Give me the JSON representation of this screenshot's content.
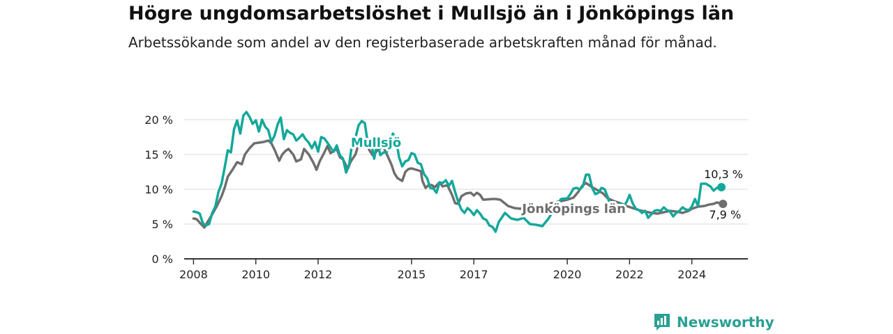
{
  "title": "Högre ungdomsarbetslöshet i Mullsjö än i Jönköpings län",
  "subtitle": "Arbetssökande som andel av den registerbaserade arbetskraften månad för månad.",
  "brand": "Newsworthy",
  "colors": {
    "mullsjo": "#13a89a",
    "lan": "#6e6e6e",
    "grid": "#d9d9d9",
    "axis": "#333333"
  },
  "chart_data": {
    "type": "line",
    "x_unit": "year",
    "xlim": [
      2007.7,
      2025.8
    ],
    "ylim": [
      0,
      20
    ],
    "grid": "horizontal",
    "y_ticks": [
      {
        "value": 0,
        "label": "0 %"
      },
      {
        "value": 5,
        "label": "5 %"
      },
      {
        "value": 10,
        "label": "10 %"
      },
      {
        "value": 15,
        "label": "15 %"
      },
      {
        "value": 20,
        "label": "20 %"
      }
    ],
    "x_ticks": [
      {
        "value": 2008,
        "label": "2008"
      },
      {
        "value": 2010,
        "label": "2010"
      },
      {
        "value": 2012,
        "label": "2012"
      },
      {
        "value": 2015,
        "label": "2015"
      },
      {
        "value": 2017,
        "label": "2017"
      },
      {
        "value": 2020,
        "label": "2020"
      },
      {
        "value": 2022,
        "label": "2022"
      },
      {
        "value": 2024,
        "label": "2024"
      }
    ],
    "series": [
      {
        "name": "Jönköpings län",
        "color": "#6e6e6e",
        "end_label": "7,9 %",
        "points": [
          [
            2008.0,
            5.8
          ],
          [
            2008.1,
            5.7
          ],
          [
            2008.2,
            5.2
          ],
          [
            2008.35,
            4.5
          ],
          [
            2008.45,
            5.3
          ],
          [
            2008.6,
            6.4
          ],
          [
            2008.75,
            7.6
          ],
          [
            2008.9,
            9.0
          ],
          [
            2009.0,
            10.2
          ],
          [
            2009.1,
            11.8
          ],
          [
            2009.25,
            12.8
          ],
          [
            2009.4,
            13.9
          ],
          [
            2009.55,
            13.6
          ],
          [
            2009.65,
            15.0
          ],
          [
            2009.8,
            15.9
          ],
          [
            2009.95,
            16.6
          ],
          [
            2010.1,
            16.7
          ],
          [
            2010.25,
            16.8
          ],
          [
            2010.4,
            17.0
          ],
          [
            2010.5,
            16.6
          ],
          [
            2010.6,
            15.7
          ],
          [
            2010.75,
            14.1
          ],
          [
            2010.85,
            15.0
          ],
          [
            2010.95,
            15.5
          ],
          [
            2011.05,
            15.8
          ],
          [
            2011.2,
            15.0
          ],
          [
            2011.3,
            14.0
          ],
          [
            2011.45,
            14.3
          ],
          [
            2011.55,
            15.8
          ],
          [
            2011.7,
            15.0
          ],
          [
            2011.85,
            13.8
          ],
          [
            2011.95,
            12.8
          ],
          [
            2012.05,
            14.0
          ],
          [
            2012.2,
            15.3
          ],
          [
            2012.3,
            16.2
          ],
          [
            2012.4,
            15.2
          ],
          [
            2012.5,
            15.5
          ],
          [
            2012.6,
            15.8
          ],
          [
            2012.7,
            14.6
          ],
          [
            2012.8,
            14.3
          ],
          [
            2012.95,
            12.9
          ],
          [
            2013.05,
            14.0
          ],
          [
            2013.2,
            15.0
          ],
          [
            2013.3,
            16.5
          ],
          [
            2013.4,
            17.4
          ],
          [
            2013.55,
            16.8
          ],
          [
            2013.65,
            15.6
          ],
          [
            2013.75,
            14.9
          ],
          [
            2013.85,
            15.3
          ],
          [
            2013.95,
            15.8
          ],
          [
            2014.1,
            16.1
          ],
          [
            2014.25,
            14.6
          ],
          [
            2014.35,
            13.6
          ],
          [
            2014.45,
            12.3
          ],
          [
            2014.55,
            11.6
          ],
          [
            2014.7,
            11.2
          ],
          [
            2014.8,
            12.5
          ],
          [
            2014.9,
            12.9
          ],
          [
            2015.0,
            13.0
          ],
          [
            2015.15,
            12.8
          ],
          [
            2015.3,
            12.6
          ],
          [
            2015.35,
            11.2
          ],
          [
            2015.45,
            10.2
          ],
          [
            2015.55,
            10.6
          ],
          [
            2015.65,
            10.6
          ],
          [
            2015.75,
            10.3
          ],
          [
            2015.9,
            11.0
          ],
          [
            2016.0,
            10.4
          ],
          [
            2016.15,
            10.6
          ],
          [
            2016.3,
            9.2
          ],
          [
            2016.4,
            8.0
          ],
          [
            2016.5,
            7.9
          ],
          [
            2016.6,
            9.0
          ],
          [
            2016.75,
            9.4
          ],
          [
            2016.9,
            9.5
          ],
          [
            2017.0,
            9.1
          ],
          [
            2017.1,
            9.5
          ],
          [
            2017.2,
            9.2
          ],
          [
            2017.3,
            8.5
          ],
          [
            2017.6,
            8.6
          ],
          [
            2017.7,
            8.6
          ],
          [
            2017.85,
            8.5
          ],
          [
            2018.1,
            7.6
          ],
          [
            2018.3,
            7.3
          ],
          [
            2018.5,
            7.2
          ],
          [
            2018.7,
            7.5
          ],
          [
            2019.0,
            7.4
          ],
          [
            2019.2,
            7.6
          ],
          [
            2019.4,
            7.9
          ],
          [
            2019.6,
            8.1
          ],
          [
            2019.8,
            8.3
          ],
          [
            2020.0,
            8.5
          ],
          [
            2020.2,
            8.8
          ],
          [
            2020.35,
            9.6
          ],
          [
            2020.5,
            10.6
          ],
          [
            2020.6,
            10.9
          ],
          [
            2020.8,
            10.3
          ],
          [
            2021.0,
            9.8
          ],
          [
            2021.15,
            9.4
          ],
          [
            2021.3,
            8.7
          ],
          [
            2021.5,
            8.3
          ],
          [
            2021.7,
            8.0
          ],
          [
            2021.9,
            7.6
          ],
          [
            2022.1,
            7.3
          ],
          [
            2022.3,
            7.0
          ],
          [
            2022.5,
            6.8
          ],
          [
            2022.7,
            6.6
          ],
          [
            2022.9,
            6.5
          ],
          [
            2023.1,
            6.7
          ],
          [
            2023.3,
            6.9
          ],
          [
            2023.5,
            6.8
          ],
          [
            2023.7,
            6.6
          ],
          [
            2023.9,
            6.9
          ],
          [
            2024.0,
            7.2
          ],
          [
            2024.2,
            7.5
          ],
          [
            2024.4,
            7.6
          ],
          [
            2024.55,
            7.8
          ],
          [
            2024.7,
            7.9
          ],
          [
            2024.8,
            8.1
          ],
          [
            2024.9,
            8.0
          ],
          [
            2025.0,
            7.9
          ]
        ]
      },
      {
        "name": "Mullsjö",
        "color": "#13a89a",
        "end_label": "10,3 %",
        "points": [
          [
            2008.0,
            6.8
          ],
          [
            2008.1,
            6.7
          ],
          [
            2008.2,
            6.5
          ],
          [
            2008.3,
            5.1
          ],
          [
            2008.4,
            4.8
          ],
          [
            2008.5,
            5.0
          ],
          [
            2008.6,
            6.6
          ],
          [
            2008.7,
            7.5
          ],
          [
            2008.8,
            9.6
          ],
          [
            2008.9,
            10.8
          ],
          [
            2009.0,
            13.1
          ],
          [
            2009.1,
            15.6
          ],
          [
            2009.2,
            15.3
          ],
          [
            2009.3,
            18.6
          ],
          [
            2009.4,
            19.9
          ],
          [
            2009.5,
            18.0
          ],
          [
            2009.6,
            20.6
          ],
          [
            2009.7,
            21.1
          ],
          [
            2009.8,
            20.4
          ],
          [
            2009.9,
            19.4
          ],
          [
            2010.0,
            19.9
          ],
          [
            2010.1,
            18.3
          ],
          [
            2010.2,
            20.0
          ],
          [
            2010.3,
            19.0
          ],
          [
            2010.4,
            18.5
          ],
          [
            2010.5,
            16.8
          ],
          [
            2010.6,
            17.7
          ],
          [
            2010.7,
            19.3
          ],
          [
            2010.8,
            20.3
          ],
          [
            2010.9,
            17.2
          ],
          [
            2011.0,
            18.5
          ],
          [
            2011.1,
            18.1
          ],
          [
            2011.2,
            17.9
          ],
          [
            2011.3,
            17.0
          ],
          [
            2011.4,
            17.4
          ],
          [
            2011.5,
            17.9
          ],
          [
            2011.6,
            17.2
          ],
          [
            2011.7,
            16.7
          ],
          [
            2011.8,
            15.9
          ],
          [
            2011.9,
            16.8
          ],
          [
            2012.0,
            15.4
          ],
          [
            2012.1,
            17.5
          ],
          [
            2012.2,
            17.3
          ],
          [
            2012.3,
            16.7
          ],
          [
            2012.4,
            16.0
          ],
          [
            2012.5,
            15.4
          ],
          [
            2012.6,
            16.3
          ],
          [
            2012.7,
            14.9
          ],
          [
            2012.8,
            14.4
          ],
          [
            2012.9,
            12.4
          ],
          [
            2013.0,
            13.6
          ],
          [
            2013.1,
            16.9
          ],
          [
            2013.2,
            17.4
          ],
          [
            2013.3,
            19.2
          ],
          [
            2013.4,
            19.8
          ],
          [
            2013.5,
            19.5
          ],
          [
            2013.6,
            16.5
          ],
          [
            2013.7,
            16.9
          ],
          [
            2013.8,
            14.4
          ],
          [
            2013.9,
            16.8
          ],
          [
            2014.0,
            14.9
          ],
          [
            2014.1,
            15.3
          ],
          [
            2014.2,
            15.3
          ],
          [
            2014.3,
            16.3
          ],
          [
            2014.4,
            18.0
          ],
          [
            2014.5,
            17.3
          ],
          [
            2014.6,
            14.6
          ],
          [
            2014.7,
            13.3
          ],
          [
            2014.8,
            14.0
          ],
          [
            2014.9,
            14.2
          ],
          [
            2015.0,
            15.2
          ],
          [
            2015.1,
            15.0
          ],
          [
            2015.2,
            13.8
          ],
          [
            2015.3,
            13.6
          ],
          [
            2015.4,
            12.2
          ],
          [
            2015.5,
            11.6
          ],
          [
            2015.6,
            10.2
          ],
          [
            2015.7,
            10.1
          ],
          [
            2015.8,
            9.5
          ],
          [
            2015.9,
            11.0
          ],
          [
            2016.0,
            10.9
          ],
          [
            2016.1,
            11.3
          ],
          [
            2016.2,
            10.5
          ],
          [
            2016.3,
            11.2
          ],
          [
            2016.4,
            9.6
          ],
          [
            2016.5,
            8.2
          ],
          [
            2016.6,
            7.1
          ],
          [
            2016.7,
            6.6
          ],
          [
            2016.8,
            7.3
          ],
          [
            2016.9,
            6.9
          ],
          [
            2017.0,
            6.3
          ],
          [
            2017.1,
            7.0
          ],
          [
            2017.2,
            6.5
          ],
          [
            2017.3,
            5.8
          ],
          [
            2017.4,
            5.6
          ],
          [
            2017.5,
            4.8
          ],
          [
            2017.6,
            4.6
          ],
          [
            2017.7,
            3.9
          ],
          [
            2017.8,
            5.3
          ],
          [
            2018.0,
            6.6
          ],
          [
            2018.2,
            5.8
          ],
          [
            2018.4,
            5.6
          ],
          [
            2018.6,
            5.9
          ],
          [
            2018.8,
            5.0
          ],
          [
            2019.0,
            4.9
          ],
          [
            2019.2,
            4.7
          ],
          [
            2019.4,
            5.8
          ],
          [
            2019.6,
            7.3
          ],
          [
            2019.8,
            8.6
          ],
          [
            2020.0,
            8.7
          ],
          [
            2020.1,
            9.3
          ],
          [
            2020.2,
            10.1
          ],
          [
            2020.3,
            10.2
          ],
          [
            2020.4,
            10.0
          ],
          [
            2020.5,
            10.4
          ],
          [
            2020.6,
            12.1
          ],
          [
            2020.7,
            12.1
          ],
          [
            2020.8,
            10.2
          ],
          [
            2020.9,
            9.3
          ],
          [
            2021.0,
            9.5
          ],
          [
            2021.1,
            10.2
          ],
          [
            2021.2,
            10.0
          ],
          [
            2021.3,
            8.9
          ],
          [
            2021.4,
            7.2
          ],
          [
            2021.5,
            7.7
          ],
          [
            2021.6,
            7.4
          ],
          [
            2021.7,
            8.0
          ],
          [
            2021.8,
            7.6
          ],
          [
            2021.9,
            8.1
          ],
          [
            2022.0,
            9.2
          ],
          [
            2022.1,
            8.0
          ],
          [
            2022.2,
            7.2
          ],
          [
            2022.3,
            7.0
          ],
          [
            2022.4,
            6.6
          ],
          [
            2022.5,
            6.9
          ],
          [
            2022.6,
            5.9
          ],
          [
            2022.7,
            6.4
          ],
          [
            2022.8,
            6.9
          ],
          [
            2022.9,
            7.0
          ],
          [
            2023.0,
            6.9
          ],
          [
            2023.1,
            7.4
          ],
          [
            2023.2,
            7.0
          ],
          [
            2023.3,
            6.8
          ],
          [
            2023.4,
            6.1
          ],
          [
            2023.5,
            6.6
          ],
          [
            2023.6,
            6.9
          ],
          [
            2023.7,
            7.4
          ],
          [
            2023.8,
            7.1
          ],
          [
            2023.9,
            7.0
          ],
          [
            2024.0,
            7.5
          ],
          [
            2024.1,
            8.6
          ],
          [
            2024.2,
            7.6
          ],
          [
            2024.3,
            10.8
          ],
          [
            2024.45,
            10.8
          ],
          [
            2024.6,
            10.4
          ],
          [
            2024.7,
            9.8
          ],
          [
            2024.8,
            10.2
          ],
          [
            2024.95,
            10.3
          ]
        ]
      }
    ],
    "annotations": [
      {
        "text": "Mullsjö",
        "series": "Mullsjö",
        "x": 2013.05,
        "y": 16.1
      },
      {
        "text": "Jönköpings län",
        "series": "Jönköpings län",
        "x": 2018.55,
        "y": 6.6
      }
    ]
  }
}
